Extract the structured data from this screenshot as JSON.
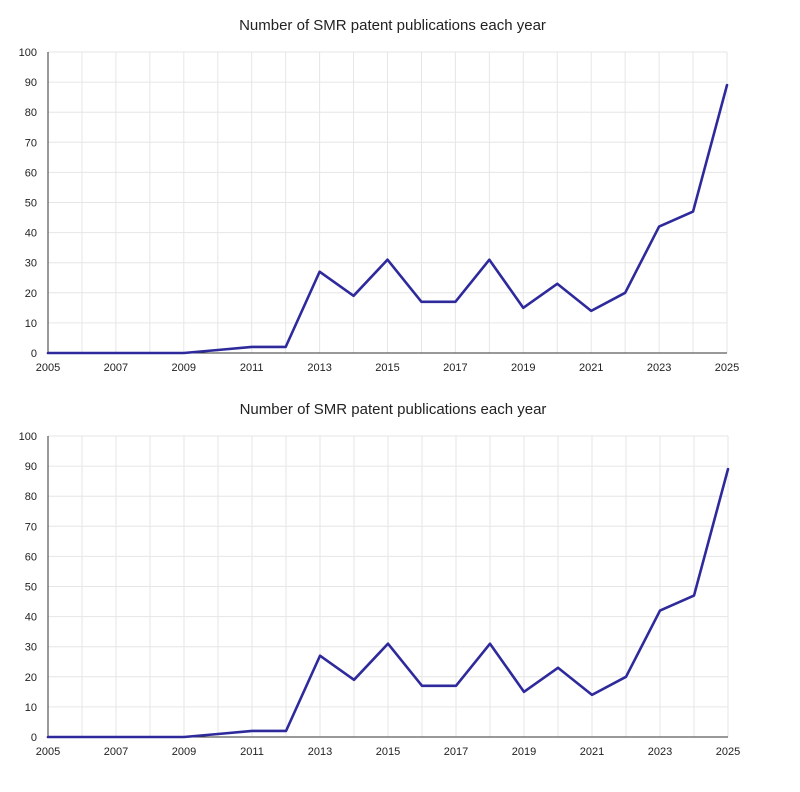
{
  "colors": {
    "series": "#2e2a9c",
    "grid": "#e6e6e6",
    "axis": "#333333",
    "text": "#222222"
  },
  "chart_data": [
    {
      "type": "line",
      "title": "Number of SMR patent publications each year",
      "xlabel": "",
      "ylabel": "",
      "xlim": [
        2005,
        2025
      ],
      "ylim": [
        0,
        100
      ],
      "x_ticks": [
        2005,
        2007,
        2009,
        2011,
        2013,
        2015,
        2017,
        2019,
        2021,
        2023,
        2025
      ],
      "y_ticks": [
        0,
        10,
        20,
        30,
        40,
        50,
        60,
        70,
        80,
        90,
        100
      ],
      "grid": true,
      "x": [
        2005,
        2006,
        2007,
        2008,
        2009,
        2010,
        2011,
        2012,
        2013,
        2014,
        2015,
        2016,
        2017,
        2018,
        2019,
        2020,
        2021,
        2022,
        2023,
        2024,
        2025
      ],
      "series": [
        {
          "values": [
            0,
            0,
            0,
            0,
            0,
            1,
            2,
            2,
            27,
            19,
            31,
            17,
            17,
            31,
            15,
            23,
            14,
            20,
            42,
            47,
            89
          ]
        }
      ]
    },
    {
      "type": "line",
      "title": "Number of SMR patent publications each year",
      "xlabel": "",
      "ylabel": "",
      "xlim": [
        2005,
        2025
      ],
      "ylim": [
        0,
        100
      ],
      "x_ticks": [
        2005,
        2007,
        2009,
        2011,
        2013,
        2015,
        2017,
        2019,
        2021,
        2023,
        2025
      ],
      "y_ticks": [
        0,
        10,
        20,
        30,
        40,
        50,
        60,
        70,
        80,
        90,
        100
      ],
      "grid": true,
      "x": [
        2005,
        2006,
        2007,
        2008,
        2009,
        2010,
        2011,
        2012,
        2013,
        2014,
        2015,
        2016,
        2017,
        2018,
        2019,
        2020,
        2021,
        2022,
        2023,
        2024,
        2025
      ],
      "series": [
        {
          "values": [
            0,
            0,
            0,
            0,
            0,
            1,
            2,
            2,
            27,
            19,
            31,
            17,
            17,
            31,
            15,
            23,
            14,
            20,
            42,
            47,
            89
          ]
        }
      ]
    }
  ]
}
